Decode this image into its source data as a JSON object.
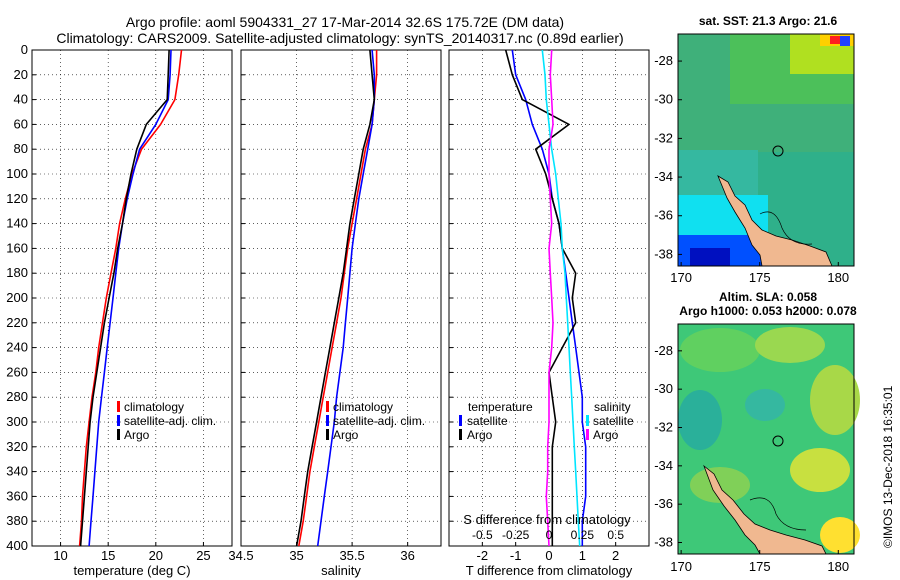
{
  "chart_data": [
    {
      "type": "line",
      "title": "Argo profile: aoml 5904331_27 17-Mar-2014 32.6S 175.72E (DM data)",
      "subtitle": "Climatology: CARS2009. Satellite-adjusted climatology: synTS_20140317.nc (0.89d earlier)",
      "xlabel": "temperature (deg C)",
      "ylabel": "",
      "xlim": [
        7,
        28
      ],
      "ylim": [
        0,
        400
      ],
      "x_ticks": [
        "10",
        "15",
        "20",
        "25"
      ],
      "y_ticks": [
        "0",
        "20",
        "40",
        "60",
        "80",
        "100",
        "120",
        "140",
        "160",
        "180",
        "200",
        "220",
        "240",
        "260",
        "280",
        "300",
        "320",
        "340",
        "360",
        "380",
        "400"
      ],
      "legend": [
        "climatology",
        "satellite-adj. clim.",
        "Argo"
      ],
      "series": [
        {
          "name": "climatology",
          "color": "#ff0000",
          "x": [
            22.7,
            22.4,
            22.0,
            20.5,
            18.5,
            17.5,
            16.8,
            16.2,
            15.8,
            15.3,
            14.8,
            14.4,
            14.0,
            13.7,
            13.3,
            13.0,
            12.7,
            12.5,
            12.3,
            12.2,
            12.0
          ],
          "y": [
            0,
            20,
            40,
            60,
            80,
            100,
            120,
            140,
            160,
            180,
            200,
            220,
            240,
            260,
            280,
            300,
            320,
            340,
            360,
            380,
            400
          ]
        },
        {
          "name": "satellite-adj. clim.",
          "color": "#0000ff",
          "x": [
            21.6,
            21.5,
            21.3,
            20.0,
            18.3,
            17.6,
            17.0,
            16.5,
            16.1,
            15.8,
            15.5,
            15.2,
            14.9,
            14.6,
            14.3,
            14.0,
            13.8,
            13.6,
            13.4,
            13.2,
            13.0
          ],
          "y": [
            0,
            20,
            40,
            60,
            80,
            100,
            120,
            140,
            160,
            180,
            200,
            220,
            240,
            260,
            280,
            300,
            320,
            340,
            360,
            380,
            400
          ]
        },
        {
          "name": "Argo",
          "color": "#000000",
          "x": [
            21.4,
            21.3,
            21.2,
            19.0,
            18.0,
            17.4,
            16.9,
            16.5,
            16.0,
            15.6,
            15.1,
            14.6,
            14.2,
            13.8,
            13.4,
            13.1,
            12.9,
            12.7,
            12.5,
            12.3,
            12.1
          ],
          "y": [
            0,
            20,
            40,
            60,
            80,
            100,
            120,
            140,
            160,
            180,
            200,
            220,
            240,
            260,
            280,
            300,
            320,
            340,
            360,
            380,
            400
          ]
        }
      ]
    },
    {
      "type": "line",
      "xlabel": "salinity",
      "xlim": [
        34.5,
        36.3
      ],
      "ylim": [
        0,
        400
      ],
      "x_ticks": [
        "34.5",
        "35",
        "35.5",
        "36"
      ],
      "legend": [
        "climatology",
        "satellite-adj. clim.",
        "Argo"
      ],
      "series": [
        {
          "name": "climatology",
          "color": "#ff0000",
          "x": [
            35.72,
            35.72,
            35.7,
            35.68,
            35.62,
            35.58,
            35.54,
            35.5,
            35.46,
            35.43,
            35.4,
            35.36,
            35.32,
            35.28,
            35.24,
            35.2,
            35.16,
            35.12,
            35.09,
            35.06,
            35.02
          ],
          "y": [
            0,
            20,
            40,
            60,
            80,
            100,
            120,
            140,
            160,
            180,
            200,
            220,
            240,
            260,
            280,
            300,
            320,
            340,
            360,
            380,
            400
          ]
        },
        {
          "name": "satellite-adj. clim.",
          "color": "#0000ff",
          "x": [
            35.68,
            35.7,
            35.7,
            35.68,
            35.64,
            35.6,
            35.56,
            35.53,
            35.5,
            35.48,
            35.46,
            35.44,
            35.42,
            35.39,
            35.36,
            35.34,
            35.31,
            35.28,
            35.25,
            35.22,
            35.19
          ],
          "y": [
            0,
            20,
            40,
            60,
            80,
            100,
            120,
            140,
            160,
            180,
            200,
            220,
            240,
            260,
            280,
            300,
            320,
            340,
            360,
            380,
            400
          ]
        },
        {
          "name": "Argo",
          "color": "#000000",
          "x": [
            35.66,
            35.68,
            35.7,
            35.66,
            35.6,
            35.56,
            35.52,
            35.48,
            35.45,
            35.42,
            35.38,
            35.34,
            35.3,
            35.26,
            35.22,
            35.18,
            35.14,
            35.1,
            35.07,
            35.04,
            35.0
          ],
          "y": [
            0,
            20,
            40,
            60,
            80,
            100,
            120,
            140,
            160,
            180,
            200,
            220,
            240,
            260,
            280,
            300,
            320,
            340,
            360,
            380,
            400
          ]
        }
      ]
    },
    {
      "type": "line",
      "xlabel": "T difference from climatology",
      "top_xlabel": "S difference from climatology",
      "xlim": [
        -3,
        3
      ],
      "top_xlim": [
        -0.75,
        0.75
      ],
      "ylim": [
        0,
        400
      ],
      "x_ticks": [
        "-2",
        "-1",
        "0",
        "1",
        "2"
      ],
      "top_x_ticks": [
        "-0.5",
        "-0.25",
        "0",
        "0.25",
        "0.5"
      ],
      "legend_temperature": {
        "title": "temperature",
        "items": [
          "satellite",
          "Argo"
        ]
      },
      "legend_salinity": {
        "title": "salinity",
        "items": [
          "satellite",
          "Argo"
        ]
      },
      "series": [
        {
          "name": "temperature satellite",
          "color": "#0000ff",
          "x": [
            -1.1,
            -1.0,
            -0.7,
            -0.5,
            -0.2,
            0.0,
            0.1,
            0.3,
            0.4,
            0.5,
            0.6,
            0.7,
            0.8,
            0.9,
            1.0,
            1.0,
            1.1,
            1.1,
            1.1,
            1.0,
            1.0
          ],
          "y": [
            0,
            20,
            40,
            60,
            80,
            100,
            120,
            140,
            160,
            180,
            200,
            220,
            240,
            260,
            280,
            300,
            320,
            340,
            360,
            380,
            400
          ]
        },
        {
          "name": "temperature Argo",
          "color": "#000000",
          "x": [
            -1.3,
            -1.1,
            -0.8,
            0.6,
            -0.4,
            -0.1,
            0.1,
            0.3,
            0.4,
            0.8,
            0.7,
            0.8,
            0.4,
            0.0,
            0.1,
            0.2,
            0.1,
            0.1,
            0.1,
            0.1,
            0.1
          ],
          "y": [
            0,
            20,
            40,
            60,
            80,
            100,
            120,
            140,
            160,
            180,
            200,
            220,
            240,
            260,
            280,
            300,
            320,
            340,
            360,
            380,
            400
          ]
        },
        {
          "name": "salinity satellite",
          "color": "#00e5ff",
          "x": [
            -0.05,
            -0.03,
            -0.02,
            0.0,
            0.02,
            0.05,
            0.07,
            0.09,
            0.1,
            0.12,
            0.13,
            0.14,
            0.15,
            0.16,
            0.17,
            0.18,
            0.19,
            0.2,
            0.21,
            0.22,
            0.23
          ],
          "y": [
            0,
            20,
            40,
            60,
            80,
            100,
            120,
            140,
            160,
            180,
            200,
            220,
            240,
            260,
            280,
            300,
            320,
            340,
            360,
            380,
            400
          ]
        },
        {
          "name": "salinity Argo",
          "color": "#ff00ff",
          "x": [
            0.02,
            0.01,
            0.02,
            0.03,
            0.0,
            0.0,
            0.01,
            0.02,
            0.0,
            0.01,
            0.02,
            0.03,
            0.02,
            0.0,
            0.0,
            0.0,
            -0.01,
            -0.01,
            -0.02,
            -0.01,
            0.0
          ],
          "y": [
            0,
            20,
            40,
            60,
            80,
            100,
            120,
            140,
            160,
            180,
            200,
            220,
            240,
            260,
            280,
            300,
            320,
            340,
            360,
            380,
            400
          ]
        }
      ]
    },
    {
      "type": "heatmap",
      "title": "sat. SST: 21.3 Argo: 21.6",
      "x_ticks": [
        "170",
        "175",
        "180"
      ],
      "y_ticks": [
        "-28",
        "-30",
        "-32",
        "-34",
        "-36",
        "-38"
      ],
      "argo_marker": {
        "lon": 175.72,
        "lat": -32.6
      }
    },
    {
      "type": "heatmap",
      "title": "Altim. SLA: 0.058",
      "subtitle": "Argo h1000: 0.053 h2000: 0.078",
      "x_ticks": [
        "170",
        "175",
        "180"
      ],
      "y_ticks": [
        "-28",
        "-30",
        "-32",
        "-34",
        "-36",
        "-38"
      ],
      "argo_marker": {
        "lon": 175.72,
        "lat": -32.6
      }
    }
  ],
  "credit": "©IMOS 13-Dec-2018 16:35:01",
  "colors": {
    "red": "#ff0000",
    "blue": "#0000ff",
    "black": "#000000",
    "cyan": "#00e5ff",
    "magenta": "#ff00ff",
    "land": "#f0b890"
  }
}
